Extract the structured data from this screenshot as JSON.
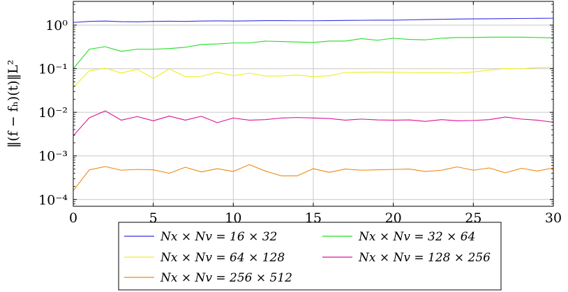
{
  "chart_data": {
    "type": "line",
    "xlabel": "",
    "ylabel": "||(f − f_h)(t)||_{L²}",
    "ylabel_display": "‖(f − fₕ)(t)‖L²",
    "xlim": [
      0,
      30
    ],
    "ylim": [
      7e-05,
      3.5
    ],
    "y_scale": "log",
    "grid": true,
    "legend_placement": "below",
    "x_ticks": [
      0,
      5,
      10,
      15,
      20,
      25,
      30
    ],
    "x_tick_labels": [
      "0",
      "5",
      "10",
      "15",
      "20",
      "25",
      "30"
    ],
    "y_ticks": [
      0.0001,
      0.001,
      0.01,
      0.1,
      1
    ],
    "y_tick_labels": [
      "10⁻⁴",
      "10⁻³",
      "10⁻²",
      "10⁻¹",
      "10⁰"
    ],
    "x": [
      0,
      1,
      2,
      3,
      4,
      5,
      6,
      7,
      8,
      9,
      10,
      11,
      12,
      13,
      14,
      15,
      16,
      17,
      18,
      19,
      20,
      21,
      22,
      23,
      24,
      25,
      26,
      27,
      28,
      29,
      30
    ],
    "series": [
      {
        "name": "N_x × N_v = 16 × 32",
        "label": "Nx × Nv = 16 × 32",
        "color": "#3333dd",
        "values": [
          1.15,
          1.22,
          1.24,
          1.2,
          1.19,
          1.22,
          1.23,
          1.22,
          1.24,
          1.25,
          1.24,
          1.25,
          1.27,
          1.27,
          1.26,
          1.26,
          1.27,
          1.28,
          1.29,
          1.3,
          1.3,
          1.32,
          1.34,
          1.36,
          1.38,
          1.39,
          1.4,
          1.41,
          1.42,
          1.43,
          1.44
        ]
      },
      {
        "name": "N_x × N_v = 32 × 64",
        "label": "Nx × Nv = 32 × 64",
        "color": "#22dd22",
        "values": [
          0.1,
          0.28,
          0.32,
          0.25,
          0.28,
          0.28,
          0.29,
          0.31,
          0.36,
          0.37,
          0.39,
          0.39,
          0.43,
          0.42,
          0.41,
          0.4,
          0.43,
          0.43,
          0.49,
          0.45,
          0.5,
          0.47,
          0.46,
          0.5,
          0.52,
          0.52,
          0.53,
          0.53,
          0.53,
          0.52,
          0.51
        ]
      },
      {
        "name": "N_x × N_v = 64 × 128",
        "label": "Nx × Nv = 64 × 128",
        "color": "#eeee22",
        "values": [
          0.037,
          0.09,
          0.103,
          0.08,
          0.097,
          0.06,
          0.099,
          0.066,
          0.067,
          0.083,
          0.069,
          0.079,
          0.068,
          0.068,
          0.072,
          0.066,
          0.069,
          0.082,
          0.083,
          0.084,
          0.083,
          0.082,
          0.081,
          0.082,
          0.079,
          0.084,
          0.093,
          0.101,
          0.099,
          0.107,
          0.108
        ]
      },
      {
        "name": "N_x × N_v = 128 × 256",
        "label": "Nx × Nv = 128 × 256",
        "color": "#dd1199",
        "values": [
          0.0029,
          0.0075,
          0.0108,
          0.0066,
          0.008,
          0.0064,
          0.0082,
          0.0066,
          0.0081,
          0.0058,
          0.0074,
          0.0066,
          0.0068,
          0.0074,
          0.0076,
          0.0074,
          0.0072,
          0.0066,
          0.007,
          0.0067,
          0.0066,
          0.0067,
          0.0062,
          0.0068,
          0.0064,
          0.0065,
          0.0068,
          0.0078,
          0.007,
          0.0066,
          0.0059
        ]
      },
      {
        "name": "N_x × N_v = 256 × 512",
        "label": "Nx × Nv = 256 × 512",
        "color": "#ee8811",
        "values": [
          0.00016,
          0.00048,
          0.00057,
          0.00047,
          0.00049,
          0.00048,
          0.0004,
          0.00055,
          0.00043,
          0.00051,
          0.00044,
          0.00063,
          0.00045,
          0.00035,
          0.00035,
          0.00051,
          0.00042,
          0.0005,
          0.00047,
          0.00048,
          0.00049,
          0.0005,
          0.00044,
          0.00047,
          0.00056,
          0.00047,
          0.00053,
          0.00041,
          0.00052,
          0.00045,
          0.00053
        ]
      }
    ]
  }
}
